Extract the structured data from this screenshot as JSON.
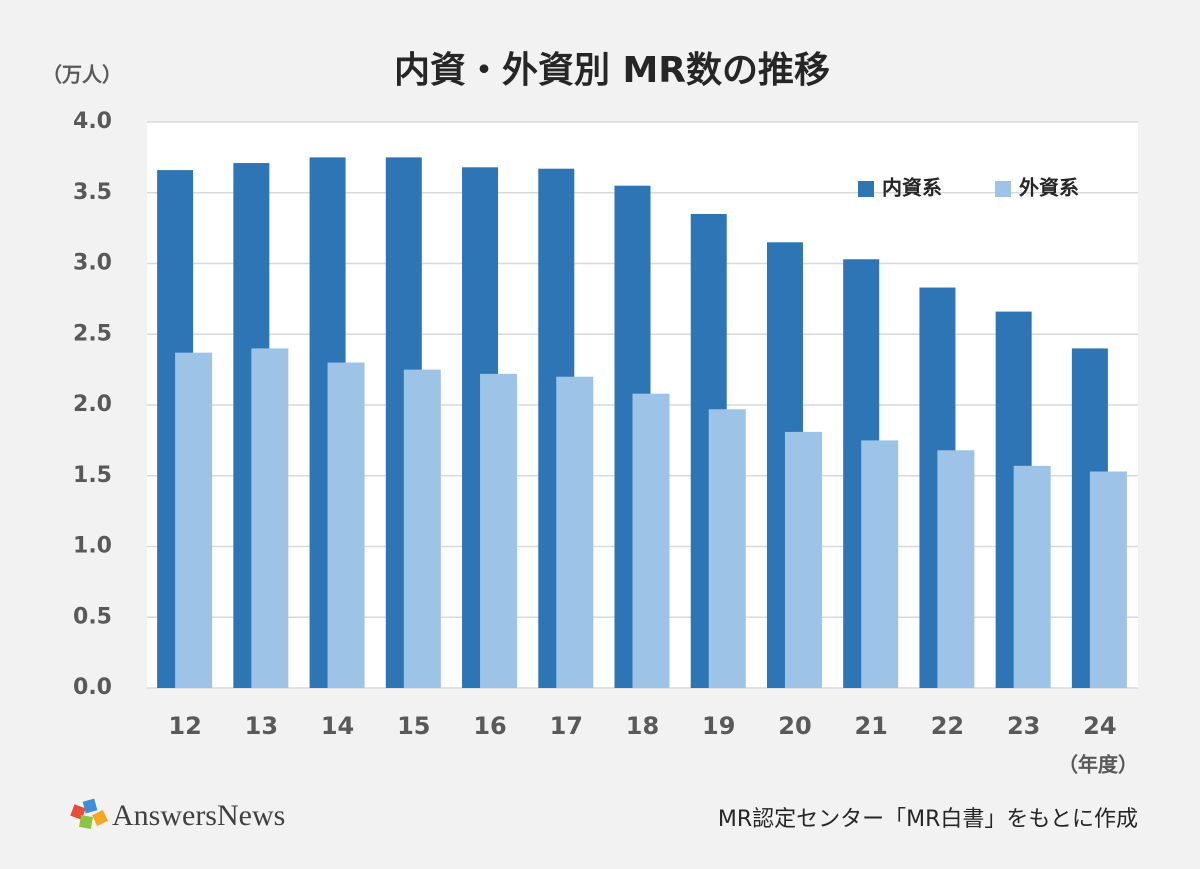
{
  "chart_data": {
    "type": "bar",
    "title": "内資・外資別 MR数の推移",
    "y_unit": "（万人）",
    "x_unit": "（年度）",
    "categories": [
      "12",
      "13",
      "14",
      "15",
      "16",
      "17",
      "18",
      "19",
      "20",
      "21",
      "22",
      "23",
      "24"
    ],
    "series": [
      {
        "name": "内資系",
        "color": "#2e75b6",
        "values": [
          3.66,
          3.71,
          3.75,
          3.75,
          3.68,
          3.67,
          3.55,
          3.35,
          3.15,
          3.03,
          2.83,
          2.66,
          2.4
        ]
      },
      {
        "name": "外資系",
        "color": "#9dc3e6",
        "values": [
          2.37,
          2.4,
          2.3,
          2.25,
          2.22,
          2.2,
          2.08,
          1.97,
          1.81,
          1.75,
          1.68,
          1.57,
          1.53
        ]
      }
    ],
    "ylim": [
      0,
      4
    ],
    "yticks": [
      {
        "value": 0,
        "label": "0.0"
      },
      0.5,
      {
        "value": 1,
        "label": "1.0"
      },
      1.5,
      {
        "value": 2,
        "label": "2.0"
      },
      2.5,
      {
        "value": 3,
        "label": "3.0"
      },
      3.5,
      {
        "value": 4,
        "label": "4.0"
      }
    ],
    "grid": true,
    "logo": "AnswersNews",
    "source": "MR認定センター「MR白書」をもとに作成"
  }
}
